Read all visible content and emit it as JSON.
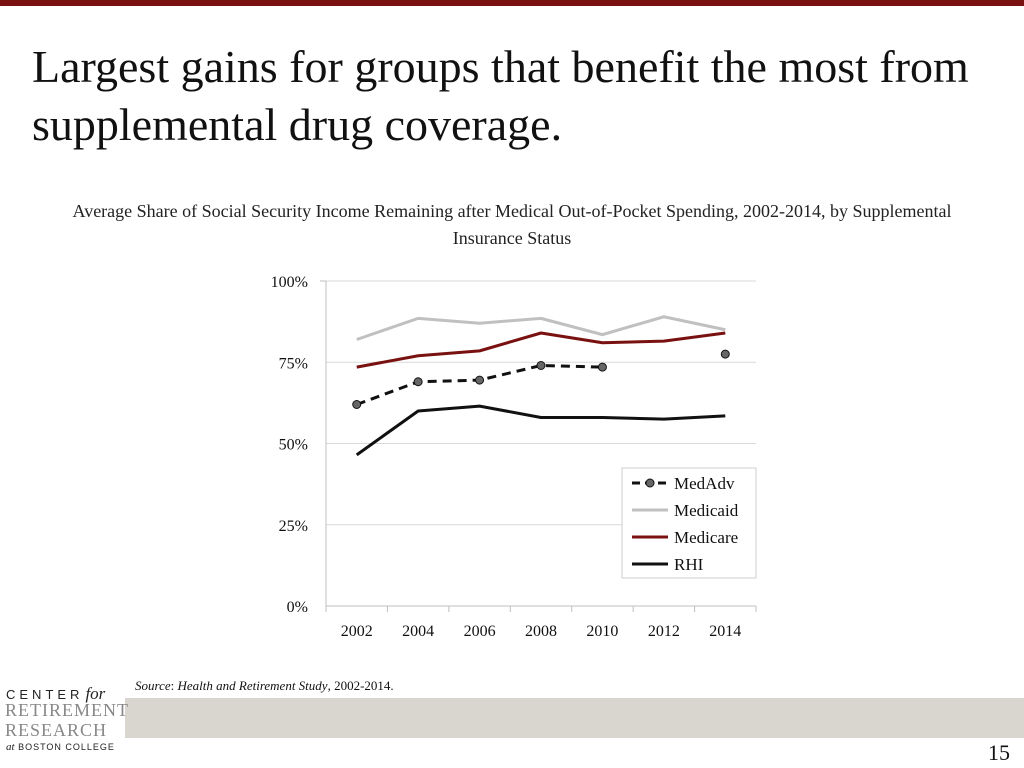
{
  "slide": {
    "title": "Largest gains for groups that benefit the most from supplemental drug coverage.",
    "source_label": "Source",
    "source_title": "Health and Retirement Study",
    "source_years": ", 2002-2014.",
    "page_number": "15",
    "accent_color": "#7a1111"
  },
  "logo": {
    "line1": "CENTER",
    "line1_for": "for",
    "line2": "RETIREMENT",
    "line3": "RESEARCH",
    "line4_at": "at",
    "line4": "BOSTON COLLEGE"
  },
  "chart_data": {
    "type": "line",
    "title": "Average Share of Social Security Income Remaining after Medical Out-of-Pocket Spending, 2002-2014, by Supplemental Insurance Status",
    "categories": [
      "2002",
      "2004",
      "2006",
      "2008",
      "2010",
      "2012",
      "2014"
    ],
    "y_ticks": [
      "0%",
      "25%",
      "50%",
      "75%",
      "100%"
    ],
    "ylim": [
      0,
      100
    ],
    "grid": true,
    "legend_position": "right-lower",
    "series": [
      {
        "name": "MedAdv",
        "color": "#111111",
        "style": "dashed-markers",
        "values": [
          62,
          69,
          69.5,
          74,
          73.5,
          null,
          77.5
        ]
      },
      {
        "name": "Medicaid",
        "color": "#c0c0c0",
        "style": "solid",
        "values": [
          82,
          88.5,
          87,
          88.5,
          83.5,
          89,
          85
        ]
      },
      {
        "name": "Medicare",
        "color": "#7a1111",
        "style": "solid",
        "values": [
          73.5,
          77,
          78.5,
          84,
          81,
          81.5,
          84
        ]
      },
      {
        "name": "RHI",
        "color": "#111111",
        "style": "solid",
        "values": [
          46.5,
          60,
          61.5,
          58,
          58,
          57.5,
          58.5
        ]
      }
    ]
  }
}
